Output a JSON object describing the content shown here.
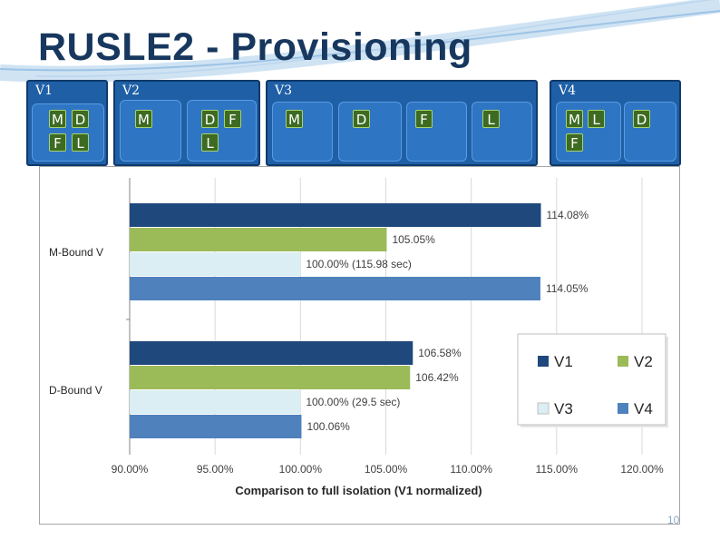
{
  "slide": {
    "title": "RUSLE2 - Provisioning",
    "page_number": "10"
  },
  "vms": [
    {
      "label": "V1",
      "components": [
        "M",
        "D",
        "F",
        "L"
      ]
    },
    {
      "label": "V2",
      "components": [
        "M",
        "D",
        "F",
        "L"
      ]
    },
    {
      "label": "V3",
      "components": [
        "M",
        "D",
        "F",
        "L"
      ]
    },
    {
      "label": "V4",
      "components": [
        "M",
        "L",
        "D",
        "F"
      ]
    }
  ],
  "colors": {
    "title": "#17375e",
    "vm_box": "#1f5fa6",
    "component_chip": "#3d6b22",
    "V1": "#1f497d",
    "V2": "#9bbb59",
    "V3": "#dbeef4",
    "V4": "#4f81bd"
  },
  "chart_data": {
    "type": "bar",
    "orientation": "horizontal",
    "title": "",
    "xlabel": "Comparison to full isolation (V1 normalized)",
    "ylabel": "",
    "categories": [
      "M-Bound V",
      "D-Bound V"
    ],
    "xlim": [
      90,
      120
    ],
    "x_ticks": [
      "90.00%",
      "95.00%",
      "100.00%",
      "105.00%",
      "110.00%",
      "115.00%",
      "120.00%"
    ],
    "grid": true,
    "legend_position": "right",
    "legend": [
      "V1",
      "V2",
      "V3",
      "V4"
    ],
    "series": [
      {
        "name": "V1",
        "values": [
          114.08,
          106.58
        ],
        "labels": [
          "114.08%",
          "106.58%"
        ]
      },
      {
        "name": "V2",
        "values": [
          105.05,
          106.42
        ],
        "labels": [
          "105.05%",
          "106.42%"
        ]
      },
      {
        "name": "V3",
        "values": [
          100.0,
          100.0
        ],
        "labels": [
          "100.00% (115.98 sec)",
          "100.00% (29.5 sec)"
        ]
      },
      {
        "name": "V4",
        "values": [
          114.05,
          100.06
        ],
        "labels": [
          "114.05%",
          "100.06%"
        ]
      }
    ]
  }
}
